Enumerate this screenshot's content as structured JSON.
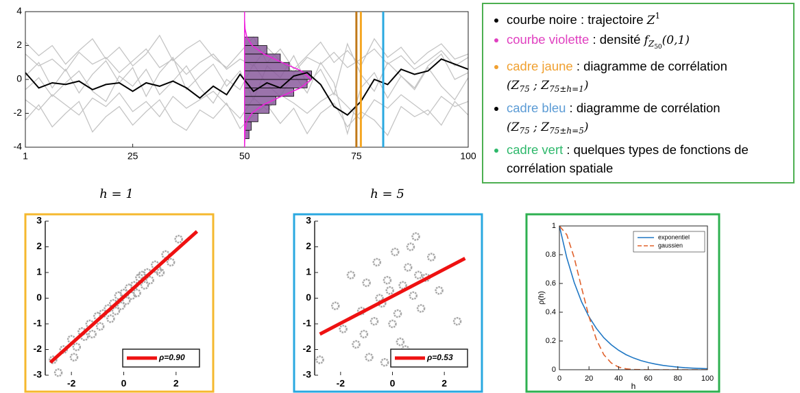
{
  "chart_data": [
    {
      "type": "line",
      "x": [
        1,
        4,
        7,
        10,
        13,
        16,
        19,
        22,
        25,
        28,
        31,
        34,
        37,
        40,
        43,
        46,
        49,
        52,
        55,
        58,
        61,
        64,
        67,
        70,
        73,
        76,
        79,
        82,
        85,
        88,
        91,
        94,
        97,
        100
      ],
      "xlim": [
        1,
        100
      ],
      "ylim": [
        -4,
        4
      ],
      "xticks": [
        1,
        25,
        50,
        75,
        100
      ],
      "yticks": [
        -4,
        -2,
        0,
        2,
        4
      ],
      "series": [
        {
          "color": "#c4c4c4",
          "values": [
            1.5,
            0.8,
            1.2,
            0.5,
            1.6,
            0.9,
            1.3,
            0.4,
            1.1,
            1.8,
            0.7,
            1.2,
            0.3,
            1.0,
            1.5,
            0.6,
            1.2,
            0.8,
            1.9,
            1.1,
            0.4,
            1.3,
            0.9,
            1.6,
            0.7,
            1.2,
            1.8,
            0.9,
            1.4,
            0.6,
            1.1,
            1.7,
            0.8,
            1.3
          ]
        },
        {
          "color": "#c4c4c4",
          "values": [
            -1.2,
            -1.8,
            -0.9,
            -1.5,
            -2.1,
            -1.1,
            -1.6,
            -0.8,
            -1.9,
            -1.3,
            -2.2,
            -1.0,
            -1.7,
            -1.2,
            -0.7,
            -1.5,
            -2.3,
            -1.1,
            -1.8,
            -0.9,
            -1.4,
            -2.0,
            -1.3,
            -0.8,
            -1.6,
            -2.4,
            -1.2,
            -1.7,
            -0.9,
            -1.5,
            -2.1,
            -1.0,
            -1.6,
            -1.3
          ]
        },
        {
          "color": "#c4c4c4",
          "values": [
            0.2,
            1.0,
            -0.5,
            0.6,
            -0.8,
            0.3,
            1.1,
            -0.2,
            0.7,
            -1.0,
            0.4,
            1.3,
            -0.6,
            0.2,
            0.9,
            -0.4,
            0.5,
            -1.2,
            0.8,
            0.1,
            1.4,
            -0.3,
            0.6,
            -0.9,
            2.1,
            0.3,
            -0.7,
            1.0,
            0.2,
            -0.5,
            0.8,
            1.5,
            0.0,
            0.4
          ]
        },
        {
          "color": "#c4c4c4",
          "values": [
            -0.6,
            0.1,
            -1.0,
            -0.2,
            0.5,
            -0.7,
            -1.3,
            0.2,
            -0.4,
            0.6,
            -0.9,
            -0.1,
            0.8,
            -0.5,
            -1.4,
            0.0,
            -0.6,
            0.9,
            -0.3,
            -1.0,
            0.3,
            -0.8,
            1.0,
            -0.2,
            -3.2,
            -0.5,
            0.4,
            -1.1,
            0.2,
            -0.6,
            0.7,
            -0.4,
            -1.2,
            0.1
          ]
        },
        {
          "color": "#c4c4c4",
          "values": [
            2.2,
            1.4,
            2.0,
            0.9,
            1.7,
            2.4,
            1.2,
            1.9,
            0.8,
            1.5,
            2.6,
            1.1,
            1.8,
            2.3,
            1.3,
            0.7,
            1.6,
            2.5,
            1.0,
            1.8,
            0.6,
            1.4,
            2.2,
            1.0,
            1.7,
            0.8,
            2.4,
            1.3,
            1.9,
            0.9,
            1.6,
            2.1,
            1.2,
            1.5
          ]
        },
        {
          "color": "#c4c4c4",
          "values": [
            -2.4,
            -1.5,
            -2.8,
            -2.0,
            -1.3,
            -3.1,
            -2.2,
            -1.6,
            -2.7,
            -1.9,
            -1.2,
            -2.5,
            -3.0,
            -1.8,
            -2.3,
            -1.4,
            -2.9,
            -2.1,
            -1.5,
            -2.6,
            -1.7,
            -3.2,
            -2.0,
            -1.4,
            -2.8,
            -1.9,
            -2.4,
            -3.3,
            -1.6,
            -2.2,
            -1.8,
            -2.7,
            -1.3,
            -2.1
          ]
        },
        {
          "color": "#000000",
          "values": [
            0.4,
            -0.5,
            -0.2,
            -0.3,
            -0.1,
            -0.6,
            -0.3,
            -0.2,
            -0.7,
            -0.2,
            -0.4,
            -0.1,
            -0.5,
            -1.1,
            -0.4,
            -0.9,
            0.3,
            -0.7,
            -0.2,
            -0.5,
            0.2,
            0.4,
            -0.3,
            -1.6,
            -2.1,
            -1.3,
            0.0,
            -0.3,
            0.6,
            0.3,
            0.5,
            1.2,
            0.9,
            0.6
          ]
        }
      ],
      "histogram": {
        "base": 50,
        "color": "#8a5a9c",
        "bins": [
          -3.5,
          -3,
          -2.5,
          -2,
          -1.5,
          -1,
          -0.5,
          0,
          0.5,
          1,
          1.5,
          2,
          2.5
        ],
        "values": [
          1,
          1.5,
          3,
          5.5,
          7,
          11,
          14,
          15,
          10,
          8,
          5,
          3
        ]
      },
      "density": {
        "color": "#ee22dd",
        "y": [
          -4,
          -3,
          -2.5,
          -2,
          -1.5,
          -1,
          -0.5,
          0,
          0.5,
          1,
          1.5,
          2,
          2.5,
          3,
          3.5
        ],
        "x": [
          50,
          50.1,
          50.5,
          51.6,
          54.2,
          58.2,
          62.5,
          64.9,
          62.7,
          58.4,
          54.3,
          51.7,
          50.5,
          50.1,
          50
        ]
      },
      "vlines": [
        {
          "value": 50,
          "color": "#ee22dd"
        },
        {
          "value": 75,
          "color": "#c07818"
        },
        {
          "value": 76,
          "color": "#f5a623"
        },
        {
          "value": 81,
          "color": "#29a8e0"
        }
      ]
    },
    {
      "type": "scatter",
      "title": "h = 1",
      "frame_color": "#f5b82e",
      "legend": "lower right",
      "xlim": [
        -3,
        3
      ],
      "ylim": [
        -3,
        3
      ],
      "xticks": [
        -2,
        0,
        2
      ],
      "yticks": [
        -3,
        -2,
        -1,
        0,
        1,
        2,
        3
      ],
      "series": [
        {
          "mode": "markers",
          "color": "#a8a8a8",
          "x": [
            -2.7,
            -2.3,
            -2.0,
            -1.8,
            -1.6,
            -1.5,
            -1.3,
            -1.2,
            -1.0,
            -0.9,
            -0.8,
            -0.6,
            -0.5,
            -0.4,
            -0.3,
            -0.2,
            -0.1,
            0.0,
            0.1,
            0.2,
            0.3,
            0.4,
            0.5,
            0.6,
            0.8,
            0.9,
            1.0,
            1.2,
            1.4,
            1.6,
            1.8,
            2.1,
            -1.9,
            -2.5,
            0.7,
            1.3
          ],
          "values": [
            -2.4,
            -2.0,
            -1.6,
            -1.9,
            -1.3,
            -1.5,
            -1.0,
            -1.4,
            -0.7,
            -1.1,
            -0.6,
            -0.4,
            -0.8,
            -0.2,
            -0.5,
            0.1,
            -0.3,
            0.2,
            -0.1,
            0.4,
            0.1,
            0.5,
            0.2,
            0.8,
            0.5,
            1.0,
            0.7,
            1.3,
            1.0,
            1.7,
            1.4,
            2.3,
            -2.3,
            -2.9,
            0.9,
            1.1
          ]
        },
        {
          "mode": "line",
          "name": "ρ=0.90",
          "color": "#ee1111",
          "x": [
            -2.8,
            2.8
          ],
          "values": [
            -2.5,
            2.6
          ]
        }
      ]
    },
    {
      "type": "scatter",
      "title": "h = 5",
      "frame_color": "#29a8e0",
      "legend": "lower right",
      "xlim": [
        -3,
        3
      ],
      "ylim": [
        -3,
        3
      ],
      "xticks": [
        -2,
        0,
        2
      ],
      "yticks": [
        -3,
        -2,
        -1,
        0,
        1,
        2,
        3
      ],
      "series": [
        {
          "mode": "markers",
          "color": "#a8a8a8",
          "x": [
            -2.8,
            -2.2,
            -1.9,
            -1.6,
            -1.4,
            -1.2,
            -1.0,
            -0.9,
            -0.7,
            -0.6,
            -0.4,
            -0.3,
            -0.1,
            0.0,
            0.1,
            0.2,
            0.4,
            0.5,
            0.6,
            0.8,
            0.9,
            1.1,
            1.3,
            1.5,
            1.8,
            2.5,
            -1.1,
            -0.5,
            0.3,
            1.0,
            -0.2,
            0.7
          ],
          "values": [
            -2.4,
            -0.3,
            -1.2,
            0.9,
            -1.8,
            -0.5,
            0.6,
            -2.3,
            -0.9,
            1.4,
            -0.2,
            -2.5,
            0.3,
            -1.0,
            1.8,
            -0.6,
            0.5,
            -2.0,
            1.2,
            0.1,
            2.4,
            -0.4,
            0.8,
            1.6,
            0.3,
            -0.9,
            -1.4,
            0.0,
            -1.7,
            0.9,
            0.7,
            2.0
          ]
        },
        {
          "mode": "line",
          "name": "ρ=0.53",
          "color": "#ee1111",
          "x": [
            -2.8,
            2.8
          ],
          "values": [
            -1.4,
            1.55
          ]
        }
      ]
    },
    {
      "type": "line",
      "frame_color": "#2eb050",
      "legend": "upper right",
      "x_label": "h",
      "y_label": "ρ(h)",
      "x": [
        0,
        5,
        10,
        15,
        20,
        25,
        30,
        35,
        40,
        45,
        50,
        55,
        60,
        65,
        70,
        75,
        80,
        85,
        90,
        95,
        100
      ],
      "xlim": [
        0,
        100
      ],
      "ylim": [
        0,
        1
      ],
      "xticks": [
        0,
        20,
        40,
        60,
        80,
        100
      ],
      "yticks": [
        0,
        0.2,
        0.4,
        0.6,
        0.8,
        1
      ],
      "series": [
        {
          "name": "exponentiel",
          "color": "#1f77c4",
          "values": [
            1,
            0.779,
            0.607,
            0.472,
            0.368,
            0.287,
            0.223,
            0.174,
            0.135,
            0.105,
            0.082,
            0.064,
            0.05,
            0.039,
            0.03,
            0.024,
            0.018,
            0.014,
            0.011,
            0.009,
            0.007
          ]
        },
        {
          "name": "gaussien",
          "color": "#e0602a",
          "dash": true,
          "values": [
            1,
            0.939,
            0.779,
            0.57,
            0.368,
            0.21,
            0.105,
            0.047,
            0.018,
            0.006,
            0.002,
            0.001,
            0,
            0,
            0,
            0,
            0,
            0,
            0,
            0,
            0
          ]
        }
      ]
    }
  ],
  "notes": [
    {
      "bullet": "#000000",
      "segments": [
        {
          "text": "courbe noire",
          "color": "#000000"
        },
        {
          "text": " : trajectoire "
        },
        {
          "text": "Z",
          "style": "math"
        },
        {
          "text": "1",
          "style": "sup"
        }
      ]
    },
    {
      "bullet": "#e040c0",
      "segments": [
        {
          "text": "courbe violette",
          "color": "#e040c0"
        },
        {
          "text": " : densité "
        },
        {
          "text": "f",
          "style": "math"
        },
        {
          "text": "Z",
          "style": "sub"
        },
        {
          "text": "50",
          "style": "subsub"
        },
        {
          "text": "(0,1)",
          "style": "math"
        }
      ]
    },
    {
      "bullet": "#f0a030",
      "segments": [
        {
          "text": "cadre jaune",
          "color": "#f0a030"
        },
        {
          "text": " : diagramme de corrélation"
        },
        {
          "text": "(",
          "style": "math",
          "newline": true
        },
        {
          "text": "Z",
          "style": "math"
        },
        {
          "text": "75",
          "style": "sub"
        },
        {
          "text": " ; ",
          "style": "math"
        },
        {
          "text": "Z",
          "style": "math"
        },
        {
          "text": "75±h=1",
          "style": "sub"
        },
        {
          "text": ")",
          "style": "math"
        }
      ]
    },
    {
      "bullet": "#000000",
      "segments": [
        {
          "text": "cadre bleu",
          "color": "#5b9bd5"
        },
        {
          "text": " : diagramme de corrélation"
        },
        {
          "text": "(",
          "style": "math",
          "newline": true
        },
        {
          "text": "Z",
          "style": "math"
        },
        {
          "text": "75",
          "style": "sub"
        },
        {
          "text": " ; ",
          "style": "math"
        },
        {
          "text": "Z",
          "style": "math"
        },
        {
          "text": "75±h=5",
          "style": "sub"
        },
        {
          "text": ")",
          "style": "math"
        }
      ]
    },
    {
      "bullet": "#2eb86b",
      "segments": [
        {
          "text": "cadre vert",
          "color": "#2eb86b"
        },
        {
          "text": " : quelques types de fonctions de corrélation spatiale"
        }
      ]
    }
  ]
}
